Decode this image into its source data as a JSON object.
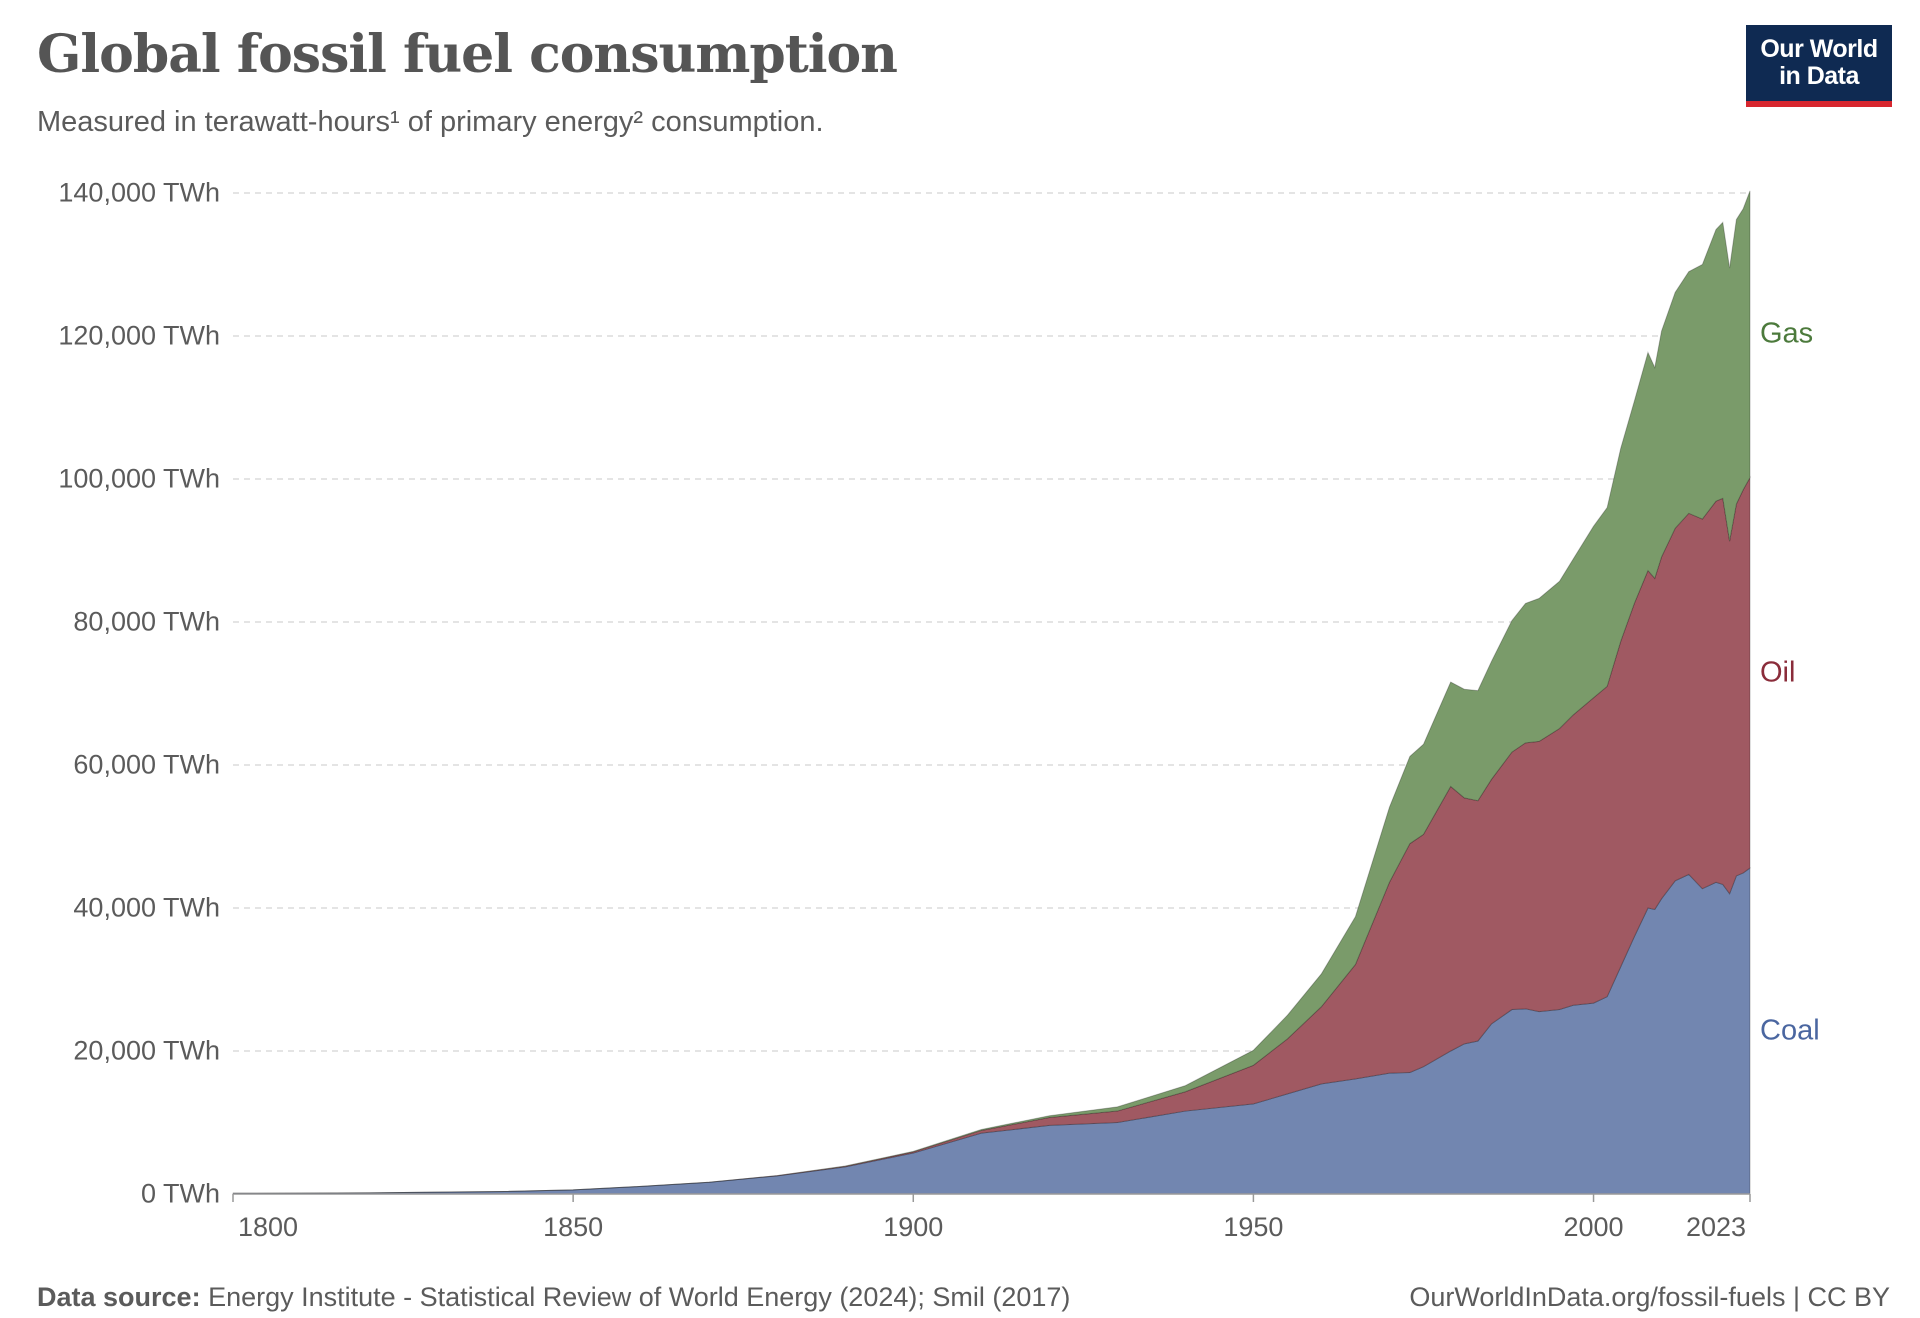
{
  "header": {
    "title": "Global fossil fuel consumption",
    "subtitle": "Measured in terawatt-hours¹ of primary energy² consumption.",
    "logo_line1": "Our World",
    "logo_line2": "in Data"
  },
  "footer": {
    "source_label": "Data source:",
    "source_text": " Energy Institute - Statistical Review of World Energy (2024); Smil (2017)",
    "url": "OurWorldInData.org/fossil-fuels | CC BY"
  },
  "chart_data": {
    "type": "area",
    "stacked": true,
    "title": "Global fossil fuel consumption",
    "ylabel": "",
    "xlabel": "",
    "ylim": [
      0,
      140000
    ],
    "xlim": [
      1800,
      2023
    ],
    "grid": "horizontal dashed",
    "legend": "inline-right",
    "y_ticks": [
      "0 TWh",
      "20,000 TWh",
      "40,000 TWh",
      "60,000 TWh",
      "80,000 TWh",
      "100,000 TWh",
      "120,000 TWh",
      "140,000 TWh"
    ],
    "y_tick_values": [
      0,
      20000,
      40000,
      60000,
      80000,
      100000,
      120000,
      140000
    ],
    "x_ticks": [
      "1800",
      "1850",
      "1900",
      "1950",
      "2000",
      "2023"
    ],
    "x": [
      1800,
      1810,
      1820,
      1830,
      1840,
      1850,
      1860,
      1870,
      1880,
      1890,
      1900,
      1910,
      1920,
      1930,
      1940,
      1950,
      1955,
      1960,
      1965,
      1970,
      1973,
      1975,
      1979,
      1981,
      1983,
      1985,
      1988,
      1990,
      1992,
      1995,
      1997,
      2000,
      2002,
      2004,
      2006,
      2008,
      2009,
      2010,
      2012,
      2014,
      2016,
      2018,
      2019,
      2020,
      2021,
      2022,
      2023
    ],
    "series": [
      {
        "name": "Coal",
        "color": "#7286b0",
        "label_color": "#4a66a0",
        "values": [
          97,
          128,
          153,
          264,
          356,
          569,
          1061,
          1642,
          2542,
          3789,
          5728,
          8508,
          9600,
          10000,
          11600,
          12600,
          14000,
          15400,
          16100,
          16900,
          17000,
          17800,
          20000,
          21000,
          21400,
          23800,
          25800,
          25900,
          25500,
          25800,
          26400,
          26700,
          27600,
          31800,
          36000,
          40000,
          39800,
          41300,
          43800,
          44700,
          42700,
          43600,
          43300,
          42000,
          44500,
          44900,
          45600
        ]
      },
      {
        "name": "Oil",
        "color": "#a05962",
        "label_color": "#8a2c3a",
        "values": [
          0,
          0,
          0,
          0,
          0,
          0,
          0,
          0,
          30,
          90,
          180,
          380,
          1100,
          1600,
          2700,
          5400,
          7700,
          10800,
          16000,
          26700,
          32000,
          32500,
          37000,
          34400,
          33600,
          34200,
          36000,
          37200,
          37800,
          39300,
          40600,
          42700,
          43400,
          45500,
          46600,
          47200,
          46300,
          47800,
          49300,
          50500,
          51700,
          53300,
          54000,
          49300,
          52000,
          53600,
          54600
        ]
      },
      {
        "name": "Gas",
        "color": "#7a9b6a",
        "label_color": "#4c7a3c",
        "values": [
          0,
          0,
          0,
          0,
          0,
          0,
          0,
          0,
          0,
          30,
          60,
          140,
          240,
          580,
          860,
          2100,
          3300,
          4600,
          6700,
          10500,
          12200,
          12600,
          14600,
          15200,
          15400,
          16500,
          18400,
          19500,
          20000,
          20600,
          21800,
          24000,
          25000,
          27000,
          28300,
          30500,
          29500,
          31600,
          33000,
          33800,
          35600,
          38000,
          38600,
          38200,
          39800,
          39300,
          40100
        ]
      }
    ]
  }
}
